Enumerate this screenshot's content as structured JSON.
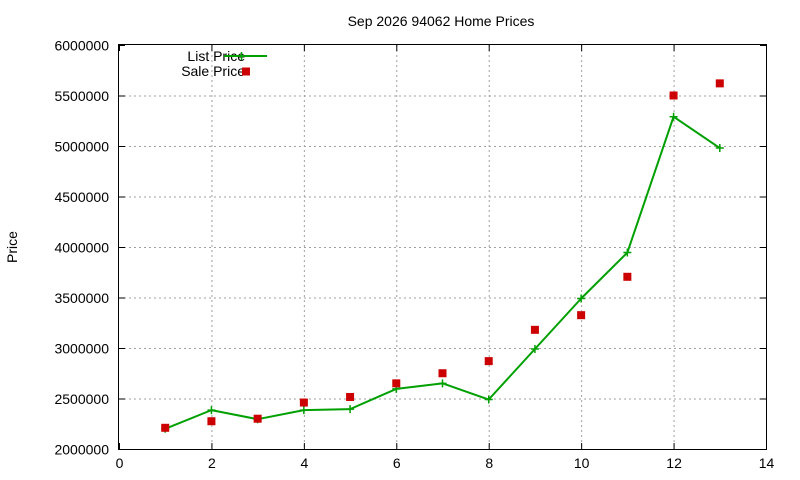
{
  "chart_data": {
    "type": "line",
    "title": "Sep 2026 94062 Home Prices",
    "xlabel": "",
    "ylabel": "Price",
    "xlim": [
      0,
      14
    ],
    "ylim": [
      2000000,
      6000000
    ],
    "x_ticks": [
      "0",
      "2",
      "4",
      "6",
      "8",
      "10",
      "12",
      "14"
    ],
    "y_ticks": [
      "2000000",
      "2500000",
      "3000000",
      "3500000",
      "4000000",
      "4500000",
      "5000000",
      "5500000",
      "6000000"
    ],
    "grid": true,
    "legend_position": "top-left",
    "series": [
      {
        "name": "List Price",
        "style": "line-plus",
        "color": "#00a000",
        "x": [
          1,
          2,
          3,
          4,
          5,
          6,
          7,
          8,
          9,
          10,
          11,
          12,
          13
        ],
        "values": [
          2200000,
          2385000,
          2295000,
          2385000,
          2395000,
          2595000,
          2650000,
          2490000,
          2990000,
          3490000,
          3945000,
          5290000,
          4980000
        ]
      },
      {
        "name": "Sale Price",
        "style": "square-points",
        "color": "#cc0000",
        "x": [
          1,
          2,
          3,
          4,
          5,
          6,
          7,
          8,
          9,
          10,
          11,
          12,
          13
        ],
        "values": [
          2210000,
          2275000,
          2300000,
          2460000,
          2515000,
          2650000,
          2750000,
          2870000,
          3180000,
          3325000,
          3705000,
          5500000,
          5620000
        ]
      }
    ]
  }
}
